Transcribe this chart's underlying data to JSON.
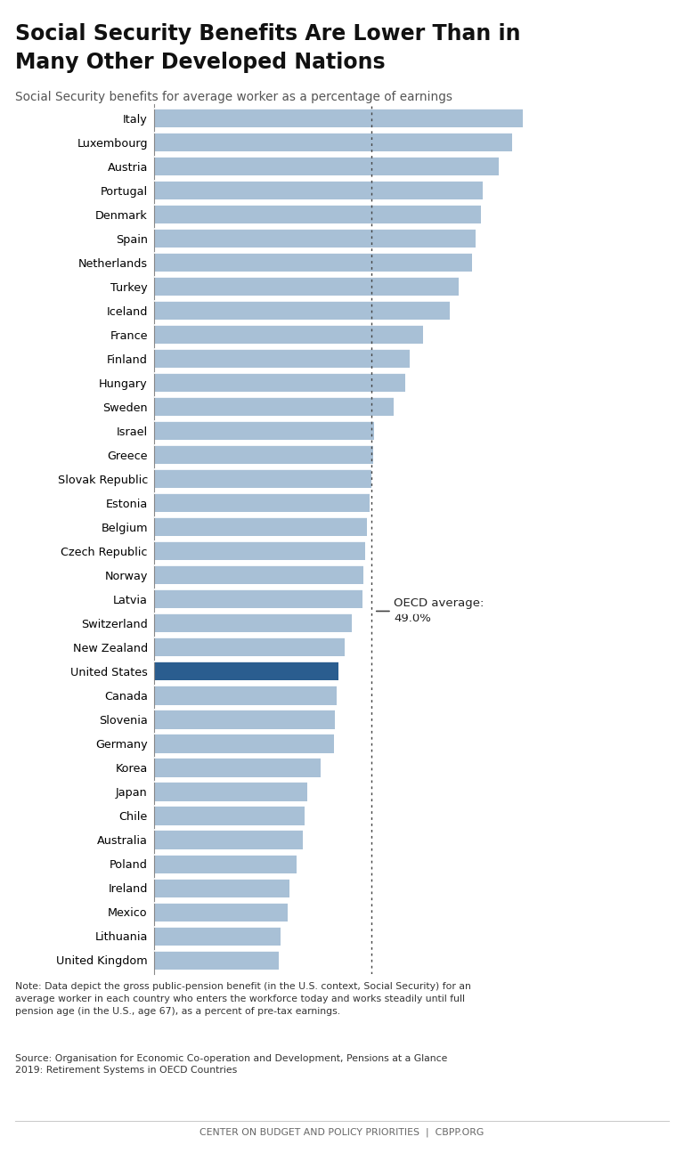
{
  "title_line1": "Social Security Benefits Are Lower Than in",
  "title_line2": "Many Other Developed Nations",
  "subtitle": "Social Security benefits for average worker as a percentage of earnings",
  "footer_note": "Note: Data depict the gross public-pension benefit (in the U.S. context, Social Security) for an\naverage worker in each country who enters the workforce today and works steadily until full\npension age (in the U.S., age 67), as a percent of pre-tax earnings.",
  "footer_source": "Source: Organisation for Economic Co-operation and Development, Pensions at a Glance\n2019: Retirement Systems in OECD Countries",
  "footer_credit": "CENTER ON BUDGET AND POLICY PRIORITIES  |  CBPP.ORG",
  "oecd_average": 49.0,
  "countries": [
    "Italy",
    "Luxembourg",
    "Austria",
    "Portugal",
    "Denmark",
    "Spain",
    "Netherlands",
    "Turkey",
    "Iceland",
    "France",
    "Finland",
    "Hungary",
    "Sweden",
    "Israel",
    "Greece",
    "Slovak Republic",
    "Estonia",
    "Belgium",
    "Czech Republic",
    "Norway",
    "Latvia",
    "Switzerland",
    "New Zealand",
    "United States",
    "Canada",
    "Slovenia",
    "Germany",
    "Korea",
    "Japan",
    "Chile",
    "Australia",
    "Poland",
    "Ireland",
    "Mexico",
    "Lithuania",
    "United Kingdom"
  ],
  "values": [
    83.0,
    80.5,
    77.5,
    74.0,
    73.5,
    72.3,
    71.5,
    68.5,
    66.5,
    60.5,
    57.5,
    56.5,
    54.0,
    49.5,
    49.3,
    49.0,
    48.5,
    48.0,
    47.5,
    47.2,
    47.0,
    44.5,
    43.0,
    41.5,
    41.2,
    40.8,
    40.5,
    37.5,
    34.5,
    33.8,
    33.5,
    32.0,
    30.5,
    30.0,
    28.5,
    28.0
  ],
  "bar_color_default": "#a8c0d6",
  "bar_color_us": "#2a5d8f",
  "background_color": "#ffffff",
  "xlim": [
    0,
    100
  ]
}
